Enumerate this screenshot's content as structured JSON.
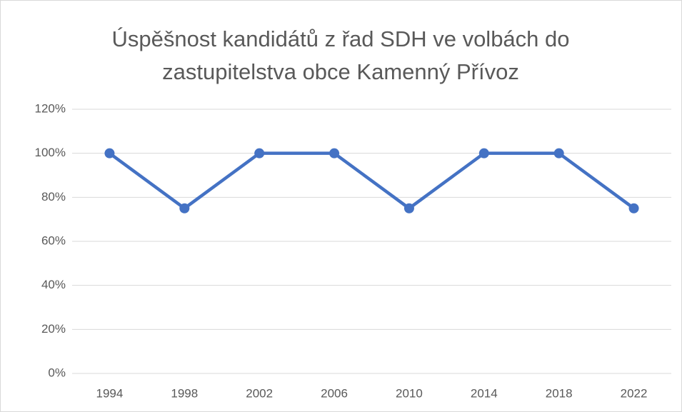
{
  "chart_data": {
    "type": "line",
    "title": "Úspěšnost kandidátů z řad SDH ve volbách do zastupitelstva obce Kamenný Přívoz",
    "categories": [
      "1994",
      "1998",
      "2002",
      "2006",
      "2010",
      "2014",
      "2018",
      "2022"
    ],
    "values": [
      100,
      75,
      100,
      100,
      75,
      100,
      100,
      75
    ],
    "color": "#4472c4",
    "ylim": [
      0,
      120
    ],
    "yticks": [
      {
        "value": 0,
        "label": "0%"
      },
      {
        "value": 20,
        "label": "20%"
      },
      {
        "value": 40,
        "label": "40%"
      },
      {
        "value": 60,
        "label": "60%"
      },
      {
        "value": 80,
        "label": "80%"
      },
      {
        "value": 100,
        "label": "100%"
      },
      {
        "value": 120,
        "label": "120%"
      }
    ],
    "grid": true
  }
}
